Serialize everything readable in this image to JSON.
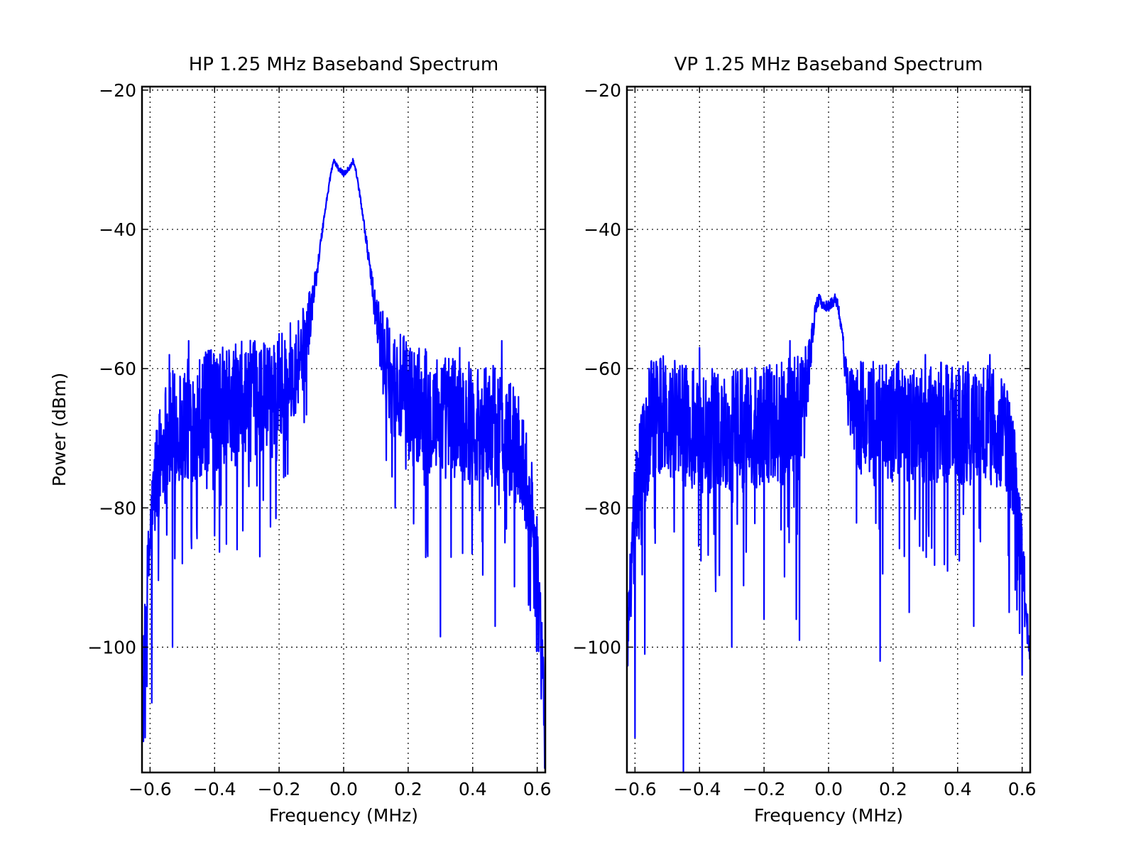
{
  "chart_data": [
    {
      "type": "line",
      "title": "HP 1.25 MHz Baseband Spectrum",
      "xlabel": "Frequency (MHz)",
      "ylabel": "Power (dBm)",
      "xlim": [
        -0.625,
        0.625
      ],
      "ylim": [
        -118,
        -19.5
      ],
      "xticks": [
        -0.6,
        -0.4,
        -0.2,
        0.0,
        0.2,
        0.4,
        0.6
      ],
      "xtick_labels": [
        "−0.6",
        "−0.4",
        "−0.2",
        "0.0",
        "0.2",
        "0.4",
        "0.6"
      ],
      "yticks": [
        -20,
        -40,
        -60,
        -80,
        -100
      ],
      "ytick_labels": [
        "−20",
        "−40",
        "−60",
        "−80",
        "−100"
      ],
      "grid": true,
      "series_color": "#0000ff",
      "series": [
        {
          "x": [
            -0.625,
            -0.61,
            -0.6,
            -0.58,
            -0.55,
            -0.5,
            -0.45,
            -0.4,
            -0.35,
            -0.3,
            -0.25,
            -0.2,
            -0.15,
            -0.12,
            -0.1,
            -0.08,
            -0.06,
            -0.04,
            -0.03,
            -0.02,
            -0.01,
            0.0,
            0.01,
            0.02,
            0.03,
            0.04,
            0.06,
            0.08,
            0.1,
            0.12,
            0.15,
            0.2,
            0.25,
            0.3,
            0.35,
            0.4,
            0.45,
            0.5,
            0.55,
            0.58,
            0.6,
            0.61,
            0.625
          ],
          "y": [
            -108,
            -92,
            -84,
            -74,
            -69,
            -67,
            -66,
            -65,
            -64.5,
            -64,
            -63,
            -62,
            -59,
            -56,
            -51,
            -45,
            -38,
            -32,
            -30,
            -31,
            -31.5,
            -32,
            -31.5,
            -31,
            -30,
            -32,
            -38,
            -45,
            -52,
            -57,
            -61,
            -64,
            -65,
            -66,
            -66,
            -67,
            -67,
            -68,
            -72,
            -78,
            -86,
            -96,
            -112
          ],
          "noise_amplitude": [
            4,
            6,
            7,
            8,
            9,
            9,
            9,
            9,
            9,
            9,
            8,
            8,
            7,
            6,
            3,
            1,
            0.5,
            0.4,
            0.4,
            0.4,
            0.4,
            0.4,
            0.4,
            0.4,
            0.4,
            0.4,
            0.5,
            1,
            3,
            6,
            8,
            9,
            9,
            9,
            9,
            9,
            9,
            9,
            8,
            7,
            6,
            5,
            4
          ],
          "dips": [
            [
              -0.595,
              -108
            ],
            [
              -0.53,
              -100
            ],
            [
              -0.5,
              -88
            ],
            [
              -0.4,
              -84
            ],
            [
              -0.33,
              -86
            ],
            [
              -0.26,
              -87
            ],
            [
              0.16,
              -80
            ],
            [
              0.26,
              -86
            ],
            [
              0.3,
              -98.5
            ],
            [
              0.36,
              -87
            ],
            [
              0.47,
              -97
            ],
            [
              0.5,
              -85
            ],
            [
              -0.615,
              -113
            ]
          ],
          "peaks": [
            [
              -0.54,
              -58
            ],
            [
              -0.48,
              -56
            ],
            [
              -0.2,
              -55
            ],
            [
              0.36,
              -57
            ],
            [
              0.49,
              -56
            ]
          ]
        }
      ]
    },
    {
      "type": "line",
      "title": "VP 1.25 MHz Baseband Spectrum",
      "xlabel": "Frequency (MHz)",
      "ylabel": "",
      "xlim": [
        -0.625,
        0.625
      ],
      "ylim": [
        -118,
        -19.5
      ],
      "xticks": [
        -0.6,
        -0.4,
        -0.2,
        0.0,
        0.2,
        0.4,
        0.6
      ],
      "xtick_labels": [
        "−0.6",
        "−0.4",
        "−0.2",
        "0.0",
        "0.2",
        "0.4",
        "0.6"
      ],
      "yticks": [
        -20,
        -40,
        -60,
        -80,
        -100
      ],
      "ytick_labels": [
        "−20",
        "−40",
        "−60",
        "−80",
        "−100"
      ],
      "grid": true,
      "series_color": "#0000ff",
      "series": [
        {
          "x": [
            -0.625,
            -0.61,
            -0.6,
            -0.58,
            -0.55,
            -0.5,
            -0.45,
            -0.4,
            -0.35,
            -0.3,
            -0.25,
            -0.2,
            -0.15,
            -0.1,
            -0.08,
            -0.06,
            -0.05,
            -0.04,
            -0.03,
            -0.02,
            -0.01,
            0.0,
            0.01,
            0.02,
            0.03,
            0.04,
            0.05,
            0.06,
            0.08,
            0.1,
            0.15,
            0.2,
            0.25,
            0.3,
            0.35,
            0.4,
            0.45,
            0.5,
            0.55,
            0.58,
            0.6,
            0.61,
            0.625
          ],
          "y": [
            -100,
            -88,
            -80,
            -72,
            -67,
            -66,
            -67,
            -68,
            -68,
            -68,
            -68,
            -67,
            -67,
            -66,
            -64,
            -59,
            -55,
            -51,
            -50,
            -50.5,
            -51,
            -51,
            -50.5,
            -50,
            -51,
            -54,
            -59,
            -63,
            -66,
            -67,
            -67,
            -67,
            -67,
            -67,
            -67,
            -67,
            -67,
            -67,
            -69,
            -76,
            -86,
            -94,
            -99
          ],
          "noise_amplitude": [
            5,
            7,
            8,
            9,
            9,
            9,
            9,
            9,
            9,
            9,
            9,
            9,
            9,
            9,
            7,
            4,
            2,
            1,
            0.8,
            0.8,
            0.8,
            0.8,
            0.8,
            0.8,
            0.8,
            1,
            2,
            4,
            7,
            9,
            9,
            9,
            9,
            9,
            9,
            9,
            9,
            9,
            8,
            7,
            6,
            5,
            4
          ],
          "dips": [
            [
              -0.6,
              -113
            ],
            [
              -0.45,
              -118
            ],
            [
              -0.35,
              -92
            ],
            [
              -0.3,
              -100
            ],
            [
              -0.2,
              -96
            ],
            [
              -0.09,
              -99
            ],
            [
              -0.1,
              -96
            ],
            [
              0.16,
              -102
            ],
            [
              0.25,
              -95
            ],
            [
              0.45,
              -97
            ],
            [
              0.56,
              -95
            ],
            [
              -0.57,
              -101
            ],
            [
              0.6,
              -104
            ]
          ],
          "peaks": [
            [
              -0.55,
              -59
            ],
            [
              -0.4,
              -57
            ],
            [
              -0.12,
              -56
            ],
            [
              0.1,
              -59
            ],
            [
              0.3,
              -58
            ],
            [
              0.5,
              -58
            ]
          ]
        }
      ]
    }
  ]
}
